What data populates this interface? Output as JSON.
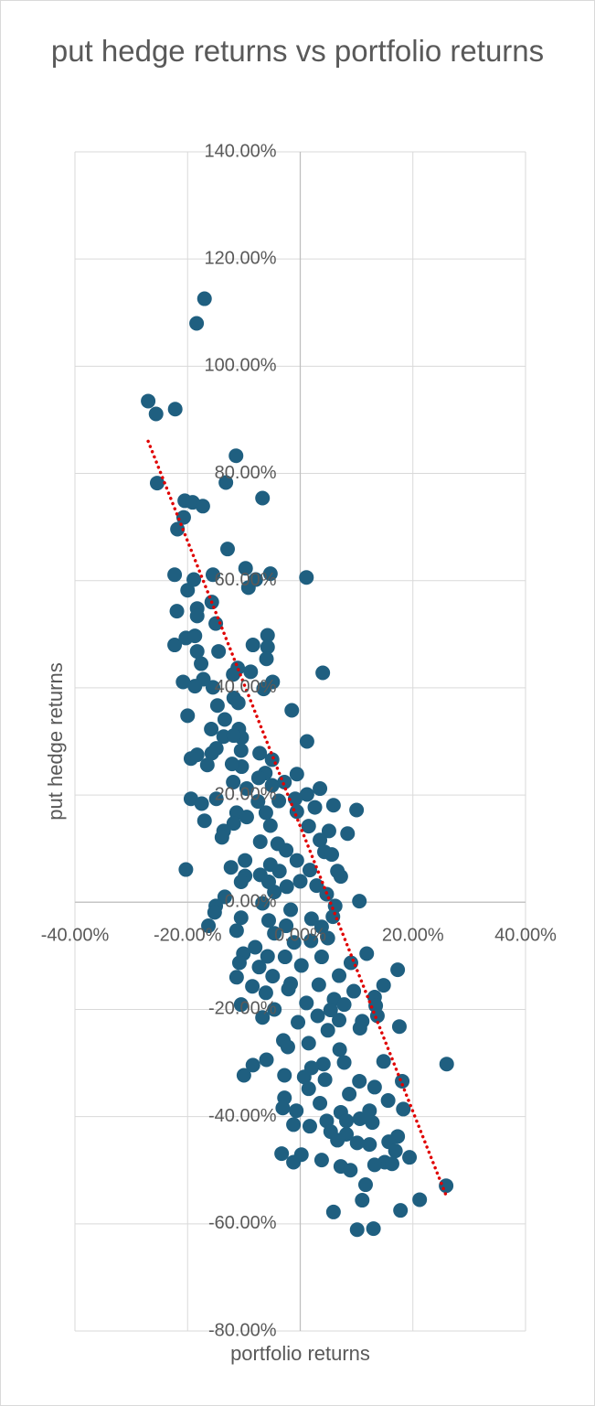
{
  "chart_data": {
    "type": "scatter",
    "title": "put hedge returns vs portfolio returns",
    "x_label": "portfolio returns",
    "y_label": "put hedge returns",
    "color": "#1f5f80",
    "grid": true,
    "xlim": [
      -40,
      40
    ],
    "ylim": [
      -80,
      140
    ],
    "xticks": [
      {
        "value": -40,
        "label": "-40.00%"
      },
      {
        "value": -20,
        "label": "-20.00%"
      },
      {
        "value": 0,
        "label": "0.00%"
      },
      {
        "value": 20,
        "label": "20.00%"
      },
      {
        "value": 40,
        "label": "40.00%"
      }
    ],
    "yticks": [
      {
        "value": -80,
        "label": "-80.00%"
      },
      {
        "value": -60,
        "label": "-60.00%"
      },
      {
        "value": -40,
        "label": "-40.00%"
      },
      {
        "value": -20,
        "label": "-20.00%"
      },
      {
        "value": 0,
        "label": "0.00%"
      },
      {
        "value": 20,
        "label": "20.00%"
      },
      {
        "value": 40,
        "label": "40.00%"
      },
      {
        "value": 60,
        "label": "60.00%"
      },
      {
        "value": 80,
        "label": "80.00%"
      },
      {
        "value": 100,
        "label": "100.00%"
      },
      {
        "value": 120,
        "label": "120.00%"
      },
      {
        "value": 140,
        "label": "140.00%"
      }
    ],
    "trendline": {
      "color": "#e00000",
      "x": [
        -27,
        26
      ],
      "y": [
        86,
        -55
      ]
    },
    "x": [
      -27.0,
      -25.6,
      -22.2,
      -17.0,
      -18.4,
      -25.4,
      -11.4,
      -13.2,
      -20.5,
      -19.1,
      -17.3,
      -20.7,
      -21.8,
      -6.7,
      -12.9,
      -22.3,
      -18.9,
      -15.5,
      -9.7,
      -5.3,
      -7.9,
      -9.2,
      1.1,
      -20.0,
      -21.9,
      -15.7,
      -18.3,
      -15.0,
      -18.3,
      -5.8,
      -22.3,
      -20.3,
      -18.7,
      -8.4,
      -5.8,
      -14.5,
      -6.0,
      -18.3,
      -17.6,
      -11.1,
      -8.8,
      4.0,
      -11.9,
      -20.8,
      -17.2,
      -4.9,
      -6.5,
      -18.7,
      -15.5,
      -11.8,
      -11.0,
      -14.7,
      -1.5,
      -20.0,
      -13.4,
      -15.8,
      -10.9,
      -13.6,
      -10.4,
      -11.8,
      1.2,
      -7.2,
      -5.0,
      -10.5,
      -15.7,
      -19.4,
      -18.3,
      -14.9,
      -16.5,
      -10.4,
      -12.1,
      -6.2,
      -7.4,
      -0.6,
      -2.8,
      -11.9,
      -5.0,
      -9.5,
      3.5,
      1.2,
      -19.4,
      -14.9,
      -17.5,
      -7.5,
      -3.8,
      -0.9,
      5.9,
      2.6,
      10.0,
      -11.3,
      -6.1,
      -0.6,
      -9.5,
      -17.0,
      -11.8,
      -5.3,
      1.5,
      -13.6,
      5.1,
      8.4,
      -13.9,
      3.5,
      -7.1,
      -4.0,
      -2.5,
      4.3,
      5.6,
      -9.8,
      -0.6,
      -5.3,
      -12.3,
      -20.3,
      -3.7,
      1.7,
      6.6,
      -9.8,
      -7.1,
      7.2,
      -10.5,
      -5.6,
      0.0,
      -2.4,
      2.9,
      -4.6,
      4.7,
      -13.4,
      10.5,
      -15.0,
      -6.7,
      6.2,
      -15.2,
      -1.7,
      -10.5,
      -5.6,
      2.0,
      5.8,
      -16.3,
      -11.3,
      -2.5,
      3.8,
      -4.6,
      11.8,
      -10.1,
      -8.0,
      -1.1,
      1.9,
      4.9,
      -5.8,
      -2.7,
      3.8,
      -10.8,
      9.0,
      -7.3,
      0.2,
      17.3,
      -11.3,
      -4.9,
      6.9,
      -1.7,
      3.3,
      14.8,
      -8.5,
      -6.1,
      -2.1,
      9.5,
      6.0,
      13.2,
      -10.5,
      1.1,
      7.8,
      13.4,
      -4.6,
      5.4,
      -6.7,
      3.1,
      13.7,
      6.9,
      11.0,
      17.6,
      -0.4,
      4.9,
      10.6,
      -3.0,
      1.5,
      -2.2,
      7.0,
      14.8,
      -10.0,
      -8.4,
      -6.0,
      4.1,
      7.8,
      26.0,
      2.0,
      -2.8,
      0.7,
      4.4,
      10.5,
      13.2,
      18.1,
      1.5,
      8.7,
      -2.8,
      15.6,
      3.5,
      18.3,
      -3.1,
      -0.7,
      7.2,
      12.3,
      8.2,
      10.6,
      4.7,
      -1.2,
      1.7,
      12.8,
      5.4,
      8.2,
      17.3,
      6.6,
      10.1,
      12.3,
      15.7,
      16.9,
      -3.3,
      0.2,
      19.4,
      15.0,
      16.3,
      3.8,
      -1.2,
      7.2,
      8.9,
      13.2,
      11.6,
      25.9,
      21.2,
      11.0,
      17.8,
      5.9,
      10.1,
      13.0
    ],
    "y": [
      93.5,
      91.1,
      92.0,
      112.6,
      108.0,
      78.2,
      83.3,
      78.3,
      74.9,
      74.6,
      73.9,
      71.8,
      69.6,
      75.4,
      65.9,
      61.1,
      60.2,
      61.1,
      62.3,
      61.3,
      60.2,
      58.7,
      60.6,
      58.2,
      54.3,
      56.0,
      54.8,
      52.0,
      53.4,
      49.8,
      48.0,
      49.3,
      49.7,
      48.0,
      47.6,
      46.8,
      45.4,
      46.8,
      44.5,
      43.7,
      43.0,
      42.8,
      42.5,
      41.1,
      41.6,
      41.1,
      39.8,
      40.3,
      40.1,
      38.1,
      37.2,
      36.7,
      35.8,
      34.8,
      34.1,
      32.3,
      32.3,
      30.9,
      30.7,
      31.1,
      30.0,
      27.8,
      26.6,
      28.3,
      27.8,
      26.8,
      27.5,
      28.7,
      25.6,
      25.3,
      25.8,
      24.1,
      23.2,
      23.9,
      22.4,
      22.4,
      21.8,
      21.2,
      21.2,
      20.1,
      19.3,
      19.3,
      18.4,
      18.8,
      18.9,
      19.3,
      18.1,
      17.7,
      17.2,
      16.7,
      16.7,
      16.9,
      15.9,
      15.2,
      14.7,
      14.3,
      14.2,
      13.3,
      13.3,
      12.8,
      12.1,
      11.6,
      11.3,
      10.9,
      9.7,
      9.4,
      8.9,
      7.8,
      7.8,
      7.0,
      6.5,
      6.1,
      5.8,
      6.0,
      5.8,
      4.9,
      5.1,
      4.8,
      3.8,
      3.8,
      3.9,
      2.9,
      3.1,
      1.9,
      1.5,
      1.0,
      0.2,
      -0.7,
      -0.2,
      -0.7,
      -1.9,
      -1.4,
      -2.9,
      -3.4,
      -3.1,
      -2.7,
      -4.4,
      -5.3,
      -4.4,
      -4.6,
      -5.8,
      -9.6,
      -9.6,
      -8.4,
      -7.5,
      -7.2,
      -6.7,
      -10.1,
      -10.2,
      -10.2,
      -11.3,
      -11.3,
      -12.1,
      -11.8,
      -12.6,
      -14.0,
      -13.8,
      -13.7,
      -15.2,
      -15.4,
      -15.5,
      -15.7,
      -16.9,
      -16.2,
      -16.6,
      -18.1,
      -17.7,
      -19.1,
      -18.8,
      -19.1,
      -19.3,
      -20.0,
      -20.1,
      -21.5,
      -21.2,
      -21.2,
      -22.0,
      -22.2,
      -23.2,
      -22.4,
      -23.9,
      -23.5,
      -25.8,
      -26.3,
      -27.0,
      -27.5,
      -29.7,
      -32.3,
      -30.4,
      -29.4,
      -30.2,
      -29.9,
      -30.2,
      -30.9,
      -32.3,
      -32.6,
      -33.1,
      -33.4,
      -34.5,
      -33.4,
      -34.8,
      -35.8,
      -36.5,
      -37.0,
      -37.5,
      -38.6,
      -38.4,
      -38.9,
      -39.2,
      -38.9,
      -40.8,
      -40.4,
      -40.8,
      -41.5,
      -41.8,
      -41.1,
      -42.8,
      -43.3,
      -43.7,
      -44.4,
      -44.9,
      -45.2,
      -44.7,
      -46.4,
      -46.9,
      -47.1,
      -47.6,
      -48.5,
      -48.8,
      -48.1,
      -48.5,
      -49.3,
      -50.0,
      -49.0,
      -52.7,
      -52.9,
      -55.5,
      -55.6,
      -57.5,
      -57.8,
      -61.1,
      -60.9
    ]
  }
}
